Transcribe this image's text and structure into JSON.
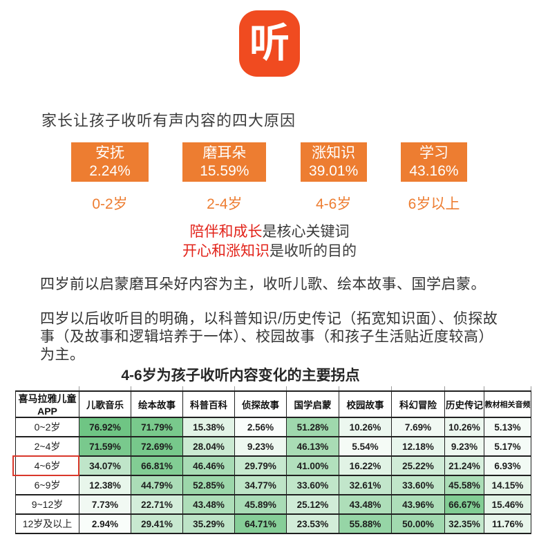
{
  "logo": {
    "char": "听"
  },
  "heading": "家长让孩子收听有声内容的四大原因",
  "reasons": [
    {
      "label": "安抚",
      "value": "2.24%",
      "age": "0-2岁"
    },
    {
      "label": "磨耳朵",
      "value": "15.59%",
      "age": "2-4岁"
    },
    {
      "label": "涨知识",
      "value": "39.01%",
      "age": "4-6岁"
    },
    {
      "label": "学习",
      "value": "43.16%",
      "age": "6岁以上"
    }
  ],
  "key_lines": [
    {
      "highlight": "陪伴和成长",
      "rest": "是核心关键词"
    },
    {
      "highlight": "开心和涨知识",
      "rest": "是收听的目的"
    }
  ],
  "paragraphs": [
    "四岁前以启蒙磨耳朵好内容为主，收听儿歌、绘本故事、国学启蒙。",
    "四岁以后收听目的明确，以科普知识/历史传记（拓宽知识面）、侦探故事（及故事和逻辑培养于一体）、校园故事（和孩子生活贴近度较高）为主。"
  ],
  "table": {
    "title": "4-6岁为孩子收听内容变化的主要拐点",
    "corner": "喜马拉雅儿童APP",
    "columns": [
      "儿歌音乐",
      "绘本故事",
      "科普百科",
      "侦探故事",
      "国学启蒙",
      "校园故事",
      "科幻冒险",
      "历史传记",
      "教材相关音频"
    ],
    "rows": [
      {
        "age": "0~2岁",
        "values": [
          76.92,
          71.79,
          15.38,
          2.56,
          51.28,
          10.26,
          7.69,
          10.26,
          5.13
        ]
      },
      {
        "age": "2~4岁",
        "values": [
          71.59,
          72.69,
          28.04,
          9.23,
          46.13,
          5.54,
          12.18,
          9.23,
          5.17
        ]
      },
      {
        "age": "4~6岁",
        "values": [
          34.07,
          66.81,
          46.46,
          29.79,
          41.0,
          16.22,
          25.22,
          21.24,
          6.93
        ]
      },
      {
        "age": "6~9岁",
        "values": [
          12.38,
          44.79,
          52.85,
          34.77,
          33.6,
          32.61,
          33.6,
          45.58,
          14.15
        ]
      },
      {
        "age": "9~12岁",
        "values": [
          7.73,
          22.71,
          43.48,
          45.89,
          25.12,
          43.48,
          43.96,
          66.67,
          15.46
        ]
      },
      {
        "age": "12岁及以上",
        "values": [
          2.94,
          29.41,
          35.29,
          64.71,
          23.53,
          55.88,
          50.0,
          32.35,
          11.76
        ]
      }
    ],
    "highlight_row": "4~6岁",
    "color_scale": {
      "min_color": "#ffffff",
      "max_color": "#6fc584",
      "max_value": 76.92
    }
  },
  "colors": {
    "accent_orange": "#ed7d31",
    "logo_orange": "#f04b20",
    "highlight_red": "#e2231a",
    "row_outline_red": "#d9372a",
    "table_border": "#1f1f1f",
    "heat_green_max": "#6fc584"
  },
  "chart_data": [
    {
      "type": "bar",
      "title": "家长让孩子收听有声内容的四大原因",
      "categories": [
        "0-2岁",
        "2-4岁",
        "4-6岁",
        "6岁以上"
      ],
      "values": [
        2.24,
        15.59,
        39.01,
        43.16
      ],
      "value_labels": [
        "安抚",
        "磨耳朵",
        "涨知识",
        "学习"
      ],
      "unit": "%"
    },
    {
      "type": "heatmap",
      "title": "4-6岁为孩子收听内容变化的主要拐点",
      "x_labels": [
        "儿歌音乐",
        "绘本故事",
        "科普百科",
        "侦探故事",
        "国学启蒙",
        "校园故事",
        "科幻冒险",
        "历史传记",
        "教材相关音频"
      ],
      "y_labels": [
        "0~2岁",
        "2~4岁",
        "4~6岁",
        "6~9岁",
        "9~12岁",
        "12岁及以上"
      ],
      "values": [
        [
          76.92,
          71.79,
          15.38,
          2.56,
          51.28,
          10.26,
          7.69,
          10.26,
          5.13
        ],
        [
          71.59,
          72.69,
          28.04,
          9.23,
          46.13,
          5.54,
          12.18,
          9.23,
          5.17
        ],
        [
          34.07,
          66.81,
          46.46,
          29.79,
          41.0,
          16.22,
          25.22,
          21.24,
          6.93
        ],
        [
          12.38,
          44.79,
          52.85,
          34.77,
          33.6,
          32.61,
          33.6,
          45.58,
          14.15
        ],
        [
          7.73,
          22.71,
          43.48,
          45.89,
          25.12,
          43.48,
          43.96,
          66.67,
          15.46
        ],
        [
          2.94,
          29.41,
          35.29,
          64.71,
          23.53,
          55.88,
          50.0,
          32.35,
          11.76
        ]
      ],
      "unit": "%",
      "legend_position": "none",
      "color_scale": {
        "min": "#ffffff",
        "max": "#6fc584"
      },
      "annotation": "4~6岁 行标签带红色方框标注"
    }
  ]
}
